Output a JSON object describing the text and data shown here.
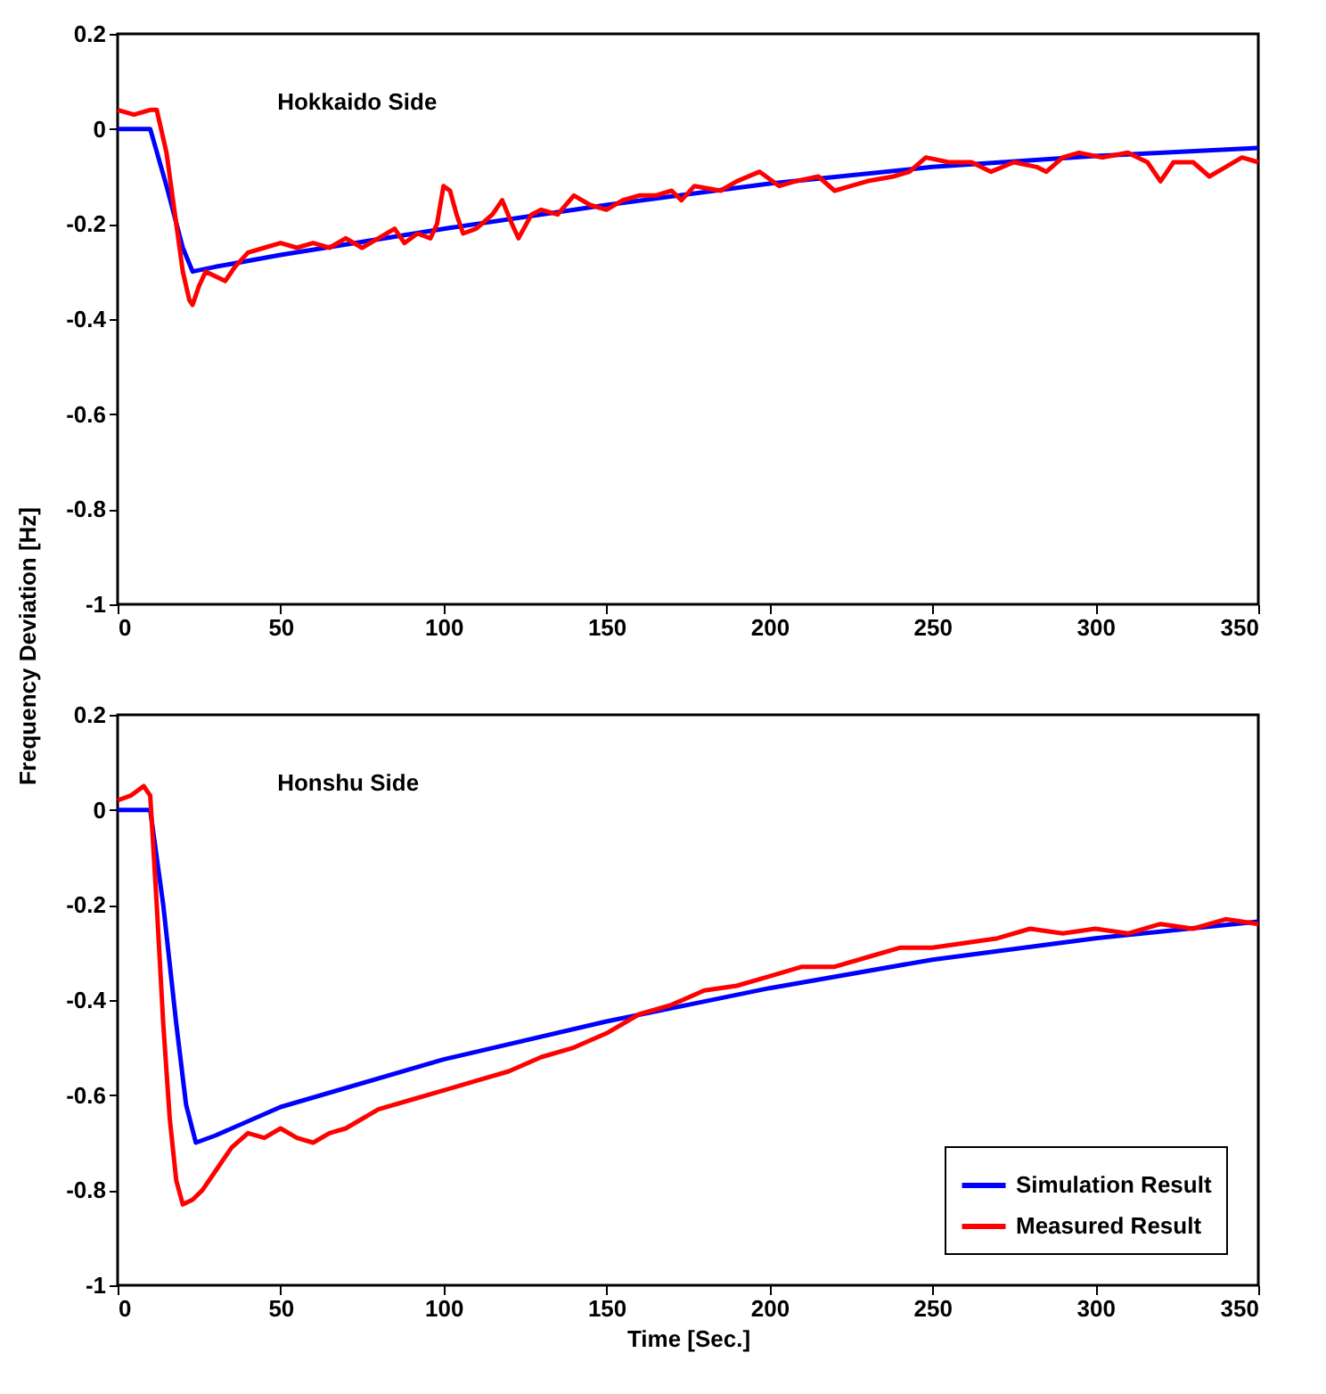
{
  "chart_data": [
    {
      "type": "line",
      "ylabel": "Frequency Deviation [Hz]",
      "annotations": [
        "Hokkaido Side"
      ],
      "xlim": [
        0,
        350
      ],
      "ylim": [
        -1,
        0.2
      ],
      "xticks": [
        0,
        50,
        100,
        150,
        200,
        250,
        300,
        350
      ],
      "yticks": [
        -1,
        -0.8,
        -0.6,
        -0.4,
        -0.2,
        0,
        0.2
      ],
      "grid": false,
      "legend": false,
      "line_style": "solid",
      "marker": "none",
      "series": [
        {
          "color": "#0000ff",
          "x": [
            0,
            10,
            15,
            20,
            23,
            30,
            50,
            100,
            150,
            200,
            250,
            300,
            350
          ],
          "values": [
            0,
            0,
            -0.12,
            -0.25,
            -0.3,
            -0.29,
            -0.265,
            -0.21,
            -0.16,
            -0.115,
            -0.08,
            -0.057,
            -0.04
          ]
        },
        {
          "color": "#ff0000",
          "x": [
            0,
            5,
            10,
            12,
            15,
            18,
            20,
            22,
            23,
            25,
            27,
            30,
            33,
            36,
            40,
            45,
            50,
            55,
            60,
            65,
            70,
            75,
            80,
            85,
            88,
            92,
            96,
            98,
            100,
            102,
            104,
            106,
            110,
            115,
            118,
            121,
            123,
            127,
            130,
            135,
            140,
            145,
            150,
            155,
            160,
            165,
            170,
            173,
            177,
            185,
            190,
            197,
            203,
            208,
            215,
            220,
            225,
            230,
            238,
            243,
            248,
            255,
            262,
            268,
            275,
            282,
            285,
            290,
            295,
            302,
            310,
            316,
            320,
            324,
            330,
            335,
            340,
            345,
            350
          ],
          "values": [
            0.04,
            0.03,
            0.04,
            0.04,
            -0.05,
            -0.2,
            -0.3,
            -0.36,
            -0.37,
            -0.33,
            -0.3,
            -0.31,
            -0.32,
            -0.29,
            -0.26,
            -0.25,
            -0.24,
            -0.25,
            -0.24,
            -0.25,
            -0.23,
            -0.25,
            -0.23,
            -0.21,
            -0.24,
            -0.22,
            -0.23,
            -0.2,
            -0.12,
            -0.13,
            -0.18,
            -0.22,
            -0.21,
            -0.18,
            -0.15,
            -0.2,
            -0.23,
            -0.18,
            -0.17,
            -0.18,
            -0.14,
            -0.16,
            -0.17,
            -0.15,
            -0.14,
            -0.14,
            -0.13,
            -0.15,
            -0.12,
            -0.13,
            -0.11,
            -0.09,
            -0.12,
            -0.11,
            -0.1,
            -0.13,
            -0.12,
            -0.11,
            -0.1,
            -0.09,
            -0.06,
            -0.07,
            -0.07,
            -0.09,
            -0.07,
            -0.08,
            -0.09,
            -0.06,
            -0.05,
            -0.06,
            -0.05,
            -0.07,
            -0.11,
            -0.07,
            -0.07,
            -0.1,
            -0.08,
            -0.06,
            -0.07
          ]
        }
      ]
    },
    {
      "type": "line",
      "xlabel": "Time [Sec.]",
      "annotations": [
        "Honshu Side"
      ],
      "xlim": [
        0,
        350
      ],
      "ylim": [
        -1,
        0.2
      ],
      "xticks": [
        0,
        50,
        100,
        150,
        200,
        250,
        300,
        350
      ],
      "yticks": [
        -1,
        -0.8,
        -0.6,
        -0.4,
        -0.2,
        0,
        0.2
      ],
      "grid": false,
      "legend": "bottom right",
      "line_style": "solid",
      "marker": "none",
      "series": [
        {
          "name": "Simulation Result",
          "color": "#0000ff",
          "x": [
            0,
            10,
            14,
            18,
            21,
            24,
            30,
            50,
            100,
            150,
            175,
            200,
            250,
            300,
            350
          ],
          "values": [
            0,
            0,
            -0.2,
            -0.45,
            -0.62,
            -0.7,
            -0.685,
            -0.625,
            -0.525,
            -0.445,
            -0.41,
            -0.375,
            -0.315,
            -0.27,
            -0.235
          ]
        },
        {
          "name": "Measured Result",
          "color": "#ff0000",
          "x": [
            0,
            4,
            8,
            10,
            12,
            14,
            16,
            18,
            20,
            23,
            26,
            30,
            35,
            40,
            45,
            50,
            55,
            60,
            65,
            70,
            80,
            90,
            100,
            110,
            120,
            130,
            140,
            150,
            160,
            170,
            180,
            190,
            200,
            210,
            220,
            230,
            240,
            250,
            260,
            270,
            280,
            290,
            300,
            310,
            320,
            330,
            340,
            350
          ],
          "values": [
            0.02,
            0.03,
            0.05,
            0.03,
            -0.2,
            -0.45,
            -0.65,
            -0.78,
            -0.83,
            -0.82,
            -0.8,
            -0.76,
            -0.71,
            -0.68,
            -0.69,
            -0.67,
            -0.69,
            -0.7,
            -0.68,
            -0.67,
            -0.63,
            -0.61,
            -0.59,
            -0.57,
            -0.55,
            -0.52,
            -0.5,
            -0.47,
            -0.43,
            -0.41,
            -0.38,
            -0.37,
            -0.35,
            -0.33,
            -0.33,
            -0.31,
            -0.29,
            -0.29,
            -0.28,
            -0.27,
            -0.25,
            -0.26,
            -0.25,
            -0.26,
            -0.24,
            -0.25,
            -0.23,
            -0.24
          ]
        }
      ]
    }
  ]
}
